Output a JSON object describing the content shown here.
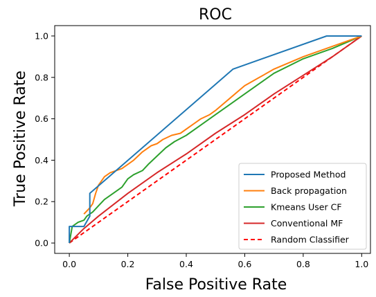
{
  "chart_data": {
    "type": "line",
    "title": "ROC",
    "xlabel": "False Positive Rate",
    "ylabel": "True Positive Rate",
    "xlim": [
      -0.05,
      1.03
    ],
    "ylim": [
      -0.05,
      1.05
    ],
    "xticks": [
      "0.0",
      "0.2",
      "0.4",
      "0.6",
      "0.8",
      "1.0"
    ],
    "yticks": [
      "0.0",
      "0.2",
      "0.4",
      "0.6",
      "0.8",
      "1.0"
    ],
    "grid": false,
    "legend_position": "lower-right",
    "series": [
      {
        "name": "Proposed Method",
        "color": "#1f77b4",
        "style": "solid",
        "x": [
          0,
          0,
          0.05,
          0.07,
          0.07,
          0.56,
          0.88,
          1.0
        ],
        "y": [
          0,
          0.08,
          0.08,
          0.13,
          0.24,
          0.84,
          1.0,
          1.0
        ]
      },
      {
        "name": "Back propagation",
        "color": "#ff7f0e",
        "style": "solid",
        "x": [
          0.05,
          0.07,
          0.08,
          0.09,
          0.1,
          0.11,
          0.12,
          0.14,
          0.16,
          0.18,
          0.2,
          0.22,
          0.25,
          0.28,
          0.3,
          0.32,
          0.35,
          0.38,
          0.4,
          0.42,
          0.45,
          0.48,
          0.5,
          0.55,
          0.6,
          0.65,
          0.7,
          0.8,
          0.9,
          1.0
        ],
        "y": [
          0.14,
          0.17,
          0.19,
          0.24,
          0.28,
          0.3,
          0.32,
          0.34,
          0.35,
          0.36,
          0.38,
          0.4,
          0.44,
          0.47,
          0.48,
          0.5,
          0.52,
          0.53,
          0.55,
          0.57,
          0.6,
          0.62,
          0.64,
          0.7,
          0.76,
          0.8,
          0.84,
          0.9,
          0.95,
          1.0
        ]
      },
      {
        "name": "Kmeans User CF",
        "color": "#2ca02c",
        "style": "solid",
        "x": [
          0,
          0.01,
          0.02,
          0.03,
          0.05,
          0.06,
          0.08,
          0.1,
          0.12,
          0.15,
          0.18,
          0.2,
          0.22,
          0.25,
          0.27,
          0.3,
          0.33,
          0.36,
          0.4,
          0.45,
          0.5,
          0.55,
          0.6,
          0.65,
          0.7,
          0.8,
          0.9,
          1.0
        ],
        "y": [
          0,
          0.08,
          0.09,
          0.1,
          0.11,
          0.13,
          0.15,
          0.18,
          0.21,
          0.24,
          0.27,
          0.31,
          0.33,
          0.35,
          0.38,
          0.42,
          0.46,
          0.49,
          0.52,
          0.57,
          0.62,
          0.67,
          0.72,
          0.77,
          0.82,
          0.89,
          0.94,
          1.0
        ]
      },
      {
        "name": "Conventional MF",
        "color": "#d62728",
        "style": "solid",
        "x": [
          0,
          0.05,
          0.1,
          0.2,
          0.3,
          0.4,
          0.5,
          0.6,
          0.7,
          0.8,
          0.9,
          1.0
        ],
        "y": [
          0,
          0.07,
          0.13,
          0.24,
          0.34,
          0.43,
          0.53,
          0.62,
          0.72,
          0.81,
          0.9,
          1.0
        ]
      },
      {
        "name": "Random Classifier",
        "color": "#ff0000",
        "style": "dashed",
        "x": [
          0,
          1.0
        ],
        "y": [
          0,
          1.0
        ]
      }
    ]
  }
}
